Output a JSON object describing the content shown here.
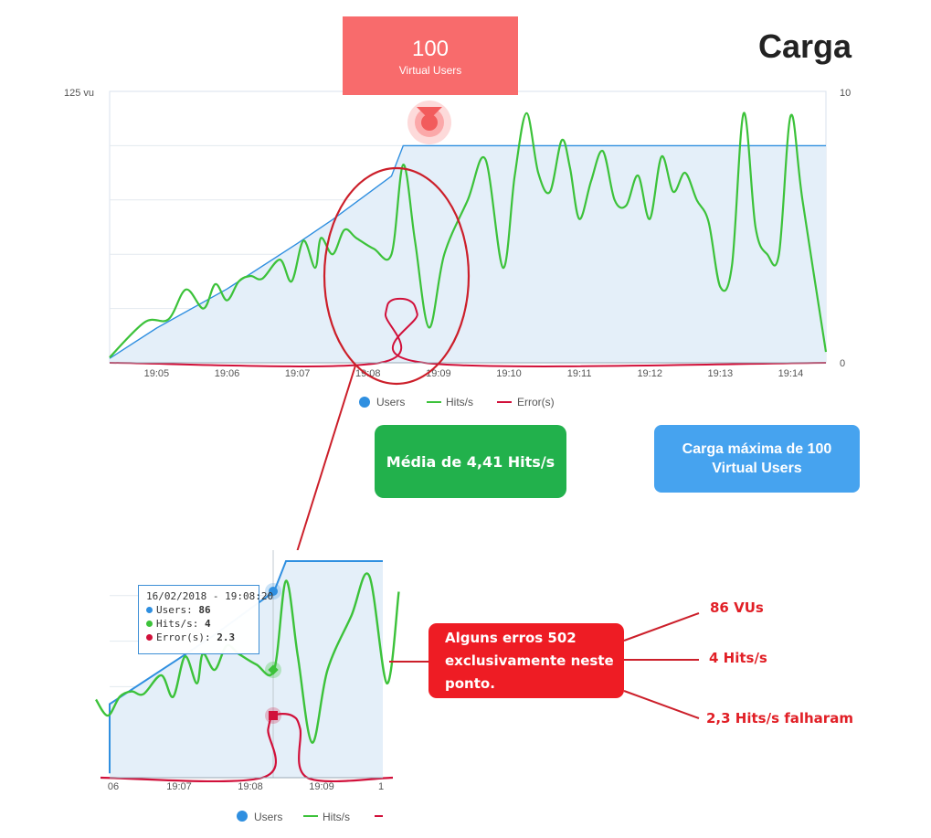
{
  "title": "Carga",
  "peak_badge": {
    "value": "100",
    "label": "Virtual Users"
  },
  "summary_boxes": {
    "avg_hits": "Média de 4,41 Hits/s",
    "max_load": "Carga máxima de 100 Virtual Users"
  },
  "annotations": {
    "errors_note": [
      "Alguns erros 502",
      "exclusivamente neste",
      "ponto."
    ],
    "vus": "86 VUs",
    "hits": "4 Hits/s",
    "failed": "2,3 Hits/s falharam"
  },
  "tooltip": {
    "date": "16/02/2018 - 19:08:20",
    "users_label": "Users:",
    "users_value": "86",
    "hits_label": "Hits/s:",
    "hits_value": "4",
    "errors_label": "Error(s):",
    "errors_value": "2.3"
  },
  "colors": {
    "users": "#2f8fe0",
    "hits": "#3cc23a",
    "errors": "#d1103a",
    "area": "#e4eff9"
  },
  "chart_data": [
    {
      "type": "line",
      "title": "Carga",
      "x_time_range": [
        "19:04:20",
        "19:14:30"
      ],
      "xticks": [
        "19:05",
        "19:06",
        "19:07",
        "19:08",
        "19:09",
        "19:10",
        "19:11",
        "19:12",
        "19:13",
        "19:14"
      ],
      "y_left": {
        "label": "125 vu",
        "range": [
          0,
          125
        ]
      },
      "y_right": {
        "ticks": [
          "10",
          "0"
        ],
        "range": [
          0,
          10
        ]
      },
      "legend": [
        "Users",
        "Hits/s",
        "Error(s)"
      ],
      "legend_position": "bottom",
      "series": [
        {
          "name": "Users",
          "axis": "left",
          "x": [
            "19:04:20",
            "19:05:00",
            "19:06:00",
            "19:07:00",
            "19:07:30",
            "19:08:00",
            "19:08:20",
            "19:08:30",
            "19:09:00",
            "19:14:30"
          ],
          "values": [
            2,
            16,
            34,
            55,
            66,
            78,
            86,
            100,
            100,
            100
          ]
        },
        {
          "name": "Hits/s",
          "axis": "right",
          "x": [
            "19:04:20",
            "19:04:50",
            "19:05:10",
            "19:05:25",
            "19:05:40",
            "19:05:50",
            "19:06:00",
            "19:06:10",
            "19:06:20",
            "19:06:30",
            "19:06:45",
            "19:06:55",
            "19:07:05",
            "19:07:15",
            "19:07:20",
            "19:07:30",
            "19:07:40",
            "19:07:50",
            "19:08:05",
            "19:08:20",
            "19:08:30",
            "19:08:40",
            "19:08:52",
            "19:09:05",
            "19:09:25",
            "19:09:40",
            "19:09:55",
            "19:10:05",
            "19:10:15",
            "19:10:25",
            "19:10:35",
            "19:10:45",
            "19:10:52",
            "19:11:00",
            "19:11:10",
            "19:11:20",
            "19:11:30",
            "19:11:40",
            "19:11:50",
            "19:12:00",
            "19:12:10",
            "19:12:20",
            "19:12:30",
            "19:12:40",
            "19:12:50",
            "19:13:00",
            "19:13:10",
            "19:13:20",
            "19:13:30",
            "19:13:40",
            "19:13:50",
            "19:14:00",
            "19:14:10",
            "19:14:30"
          ],
          "values": [
            0.2,
            1.5,
            1.6,
            2.7,
            2.0,
            2.9,
            2.3,
            3.0,
            3.2,
            3.1,
            3.8,
            3.0,
            4.5,
            3.5,
            4.6,
            4.0,
            4.9,
            4.6,
            4.2,
            4.0,
            7.3,
            4.5,
            1.3,
            4.0,
            6.0,
            7.5,
            3.5,
            6.9,
            9.2,
            7.0,
            6.3,
            8.2,
            7.2,
            5.3,
            6.7,
            7.8,
            6.0,
            5.8,
            6.9,
            5.3,
            7.6,
            6.3,
            7.0,
            6.0,
            5.2,
            2.8,
            3.6,
            9.2,
            5.0,
            4.0,
            4.0,
            9.1,
            6.0,
            0.4
          ]
        },
        {
          "name": "Error(s)",
          "axis": "right",
          "x": [
            "19:04:20",
            "19:08:10",
            "19:08:15",
            "19:08:20",
            "19:08:35",
            "19:08:42",
            "19:08:48",
            "19:14:30"
          ],
          "values": [
            0,
            0,
            1.8,
            2.3,
            2.3,
            1.8,
            0,
            0
          ]
        }
      ]
    },
    {
      "type": "line",
      "title": "",
      "xticks": [
        "06",
        "19:07",
        "19:08",
        "19:09",
        "1"
      ],
      "legend": [
        "Users",
        "Hits/s",
        "Error(s)"
      ],
      "legend_position": "bottom",
      "crosshair": "19:08:20"
    }
  ]
}
